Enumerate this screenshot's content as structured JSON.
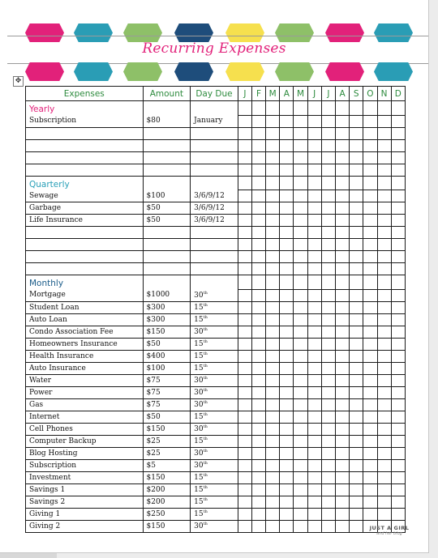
{
  "banner": {
    "title": "Recurring Expenses",
    "colors": [
      "#e2217a",
      "#2a9db5",
      "#8ec068",
      "#1e4d7b",
      "#f6e04e",
      "#8ec068",
      "#e2217a",
      "#2a9db5",
      "#8ec068"
    ]
  },
  "table": {
    "headers": {
      "expenses": "Expenses",
      "amount": "Amount",
      "day_due": "Day Due",
      "months": [
        "J",
        "F",
        "M",
        "A",
        "M",
        "J",
        "J",
        "A",
        "S",
        "O",
        "N",
        "D"
      ]
    },
    "sections": [
      {
        "title": "Yearly",
        "color": "#e2217a",
        "rows": [
          {
            "expense": "Subscription",
            "amount": "$80",
            "day": "January",
            "sup": ""
          }
        ],
        "blank_rows": 4
      },
      {
        "title": "Quarterly",
        "color": "#2aa0b8",
        "rows": [
          {
            "expense": "Sewage",
            "amount": "$100",
            "day": "3/6/9/12",
            "sup": ""
          },
          {
            "expense": "Garbage",
            "amount": "$50",
            "day": "3/6/9/12",
            "sup": ""
          },
          {
            "expense": "Life Insurance",
            "amount": "$50",
            "day": "3/6/9/12",
            "sup": ""
          }
        ],
        "blank_rows": 4
      },
      {
        "title": "Monthly",
        "color": "#1c5d8a",
        "rows": [
          {
            "expense": "Mortgage",
            "amount": "$1000",
            "day": "30",
            "sup": "th"
          },
          {
            "expense": "Student Loan",
            "amount": "$300",
            "day": "15",
            "sup": "th"
          },
          {
            "expense": "Auto Loan",
            "amount": "$300",
            "day": "15",
            "sup": "th"
          },
          {
            "expense": "Condo Association Fee",
            "amount": "$150",
            "day": "30",
            "sup": "th"
          },
          {
            "expense": "Homeowners Insurance",
            "amount": "$50",
            "day": "15",
            "sup": "th"
          },
          {
            "expense": "Health Insurance",
            "amount": "$400",
            "day": "15",
            "sup": "th"
          },
          {
            "expense": "Auto Insurance",
            "amount": "$100",
            "day": "15",
            "sup": "th"
          },
          {
            "expense": "Water",
            "amount": "$75",
            "day": "30",
            "sup": "th"
          },
          {
            "expense": "Power",
            "amount": "$75",
            "day": "30",
            "sup": "th"
          },
          {
            "expense": "Gas",
            "amount": "$75",
            "day": "30",
            "sup": "th"
          },
          {
            "expense": "Internet",
            "amount": "$50",
            "day": "15",
            "sup": "th"
          },
          {
            "expense": "Cell Phones",
            "amount": "$150",
            "day": "30",
            "sup": "th"
          },
          {
            "expense": "Computer Backup",
            "amount": "$25",
            "day": "15",
            "sup": "th"
          },
          {
            "expense": "Blog Hosting",
            "amount": "$25",
            "day": "30",
            "sup": "th"
          },
          {
            "expense": "Subscription",
            "amount": "$5",
            "day": "30",
            "sup": "th"
          },
          {
            "expense": "Investment",
            "amount": "$150",
            "day": "15",
            "sup": "th"
          },
          {
            "expense": "Savings 1",
            "amount": "$200",
            "day": "15",
            "sup": "th"
          },
          {
            "expense": "Savings 2",
            "amount": "$200",
            "day": "15",
            "sup": "th"
          },
          {
            "expense": "Giving 1",
            "amount": "$250",
            "day": "15",
            "sup": "th"
          },
          {
            "expense": "Giving 2",
            "amount": "$150",
            "day": "30",
            "sup": "th"
          }
        ],
        "blank_rows": 0
      }
    ]
  },
  "logo": {
    "line1": "JUST A GIRL",
    "line2": "and her blog"
  },
  "icons": {
    "table_move_handle": "move-arrows-icon"
  }
}
